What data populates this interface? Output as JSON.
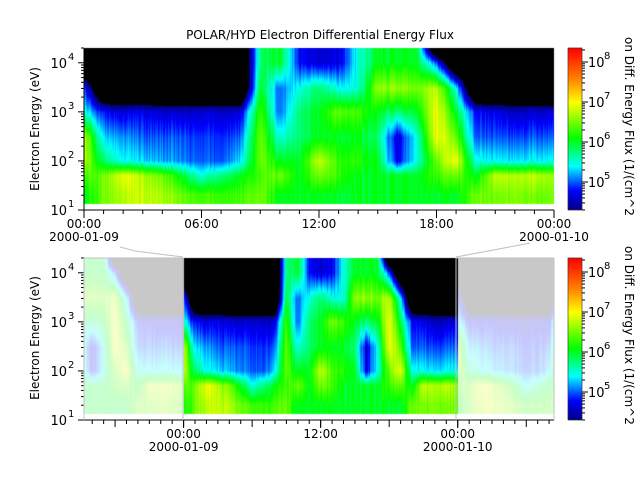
{
  "chart_data": [
    {
      "type": "heatmap",
      "panel": "overview",
      "title": "POLAR/HYD  Electron Differential Energy Flux",
      "ylabel": "Electron Energy (eV)",
      "zlabel": "on Diff. Energy Flux (1/(cm^2",
      "yscale": "log",
      "zscale": "log",
      "ylim": [
        10,
        20000
      ],
      "zlim": [
        20000,
        220000000
      ],
      "xlim": [
        "2000-01-09T00:00",
        "2000-01-10T00:00"
      ],
      "xticks": [
        {
          "time": "00:00",
          "date": "2000-01-09",
          "hour": 0
        },
        {
          "time": "06:00",
          "date": "",
          "hour": 6
        },
        {
          "time": "12:00",
          "date": "",
          "hour": 12
        },
        {
          "time": "18:00",
          "date": "",
          "hour": 18
        },
        {
          "time": "00:00",
          "date": "2000-01-10",
          "hour": 24
        }
      ],
      "yticks": [
        {
          "base": "10",
          "exp": "1",
          "value": 10
        },
        {
          "base": "10",
          "exp": "2",
          "value": 100
        },
        {
          "base": "10",
          "exp": "3",
          "value": 1000
        },
        {
          "base": "10",
          "exp": "4",
          "value": 10000
        }
      ],
      "zticks": [
        {
          "base": "10",
          "exp": "5",
          "value": 100000
        },
        {
          "base": "10",
          "exp": "6",
          "value": 1000000
        },
        {
          "base": "10",
          "exp": "7",
          "value": 10000000
        },
        {
          "base": "10",
          "exp": "8",
          "value": 100000000
        }
      ],
      "colormap": [
        "#00007f",
        "#0000ff",
        "#00ffff",
        "#00ff00",
        "#ffff00",
        "#ff8000",
        "#ff0000"
      ],
      "fill_color": "#000000",
      "energies": [
        13,
        20,
        50,
        100,
        300,
        1000,
        3000,
        10000,
        20000
      ],
      "times": [
        "2000-01-09T00:00",
        "2000-01-09T01:00",
        "2000-01-09T02:00",
        "2000-01-09T03:00",
        "2000-01-09T04:00",
        "2000-01-09T05:00",
        "2000-01-09T06:00",
        "2000-01-09T07:00",
        "2000-01-09T08:00",
        "2000-01-09T09:00",
        "2000-01-09T10:00",
        "2000-01-09T11:00",
        "2000-01-09T12:00",
        "2000-01-09T13:00",
        "2000-01-09T14:00",
        "2000-01-09T15:00",
        "2000-01-09T16:00",
        "2000-01-09T17:00",
        "2000-01-09T18:00",
        "2000-01-09T19:00",
        "2000-01-09T20:00",
        "2000-01-09T21:00",
        "2000-01-09T22:00",
        "2000-01-09T23:00",
        "2000-01-10T00:00"
      ],
      "flux": [
        [
          1000000.0,
          1000000.0,
          2000000.0,
          6000000.0,
          6000000.0,
          300000.0,
          100000.0,
          null,
          null
        ],
        [
          3000000.0,
          3000000.0,
          3000000.0,
          600000.0,
          200000.0,
          60000.0,
          null,
          null,
          null
        ],
        [
          6000000.0,
          6000000.0,
          10000000.0,
          300000.0,
          160000.0,
          50000.0,
          null,
          null,
          null
        ],
        [
          6000000.0,
          6000000.0,
          5000000.0,
          200000.0,
          100000.0,
          50000.0,
          null,
          null,
          null
        ],
        [
          5000000.0,
          5000000.0,
          3000000.0,
          160000.0,
          100000.0,
          40000.0,
          null,
          null,
          null
        ],
        [
          3000000.0,
          3000000.0,
          1000000.0,
          130000.0,
          100000.0,
          40000.0,
          null,
          null,
          null
        ],
        [
          2000000.0,
          2000000.0,
          300000.0,
          100000.0,
          80000.0,
          40000.0,
          null,
          null,
          null
        ],
        [
          2000000.0,
          2000000.0,
          600000.0,
          100000.0,
          80000.0,
          40000.0,
          null,
          null,
          null
        ],
        [
          2000000.0,
          2000000.0,
          1000000.0,
          200000.0,
          100000.0,
          40000.0,
          null,
          null,
          null
        ],
        [
          3000000.0,
          3000000.0,
          2000000.0,
          3000000.0,
          3000000.0,
          2000000.0,
          1000000.0,
          600000.0,
          600000.0
        ],
        [
          1000000.0,
          1000000.0,
          3000000.0,
          1000000.0,
          300000.0,
          100000.0,
          100000.0,
          1000000.0,
          1000000.0
        ],
        [
          1000000.0,
          1000000.0,
          1000000.0,
          1000000.0,
          600000.0,
          600000.0,
          300000.0,
          60000.0,
          60000.0
        ],
        [
          1000000.0,
          1000000.0,
          3000000.0,
          6000000.0,
          1000000.0,
          1000000.0,
          600000.0,
          40000.0,
          40000.0
        ],
        [
          1000000.0,
          1000000.0,
          2000000.0,
          2000000.0,
          1000000.0,
          3000000.0,
          300000.0,
          50000.0,
          50000.0
        ],
        [
          1000000.0,
          1000000.0,
          1000000.0,
          1600000.0,
          1000000.0,
          2000000.0,
          300000.0,
          300000.0,
          300000.0
        ],
        [
          1000000.0,
          1000000.0,
          1000000.0,
          1000000.0,
          600000.0,
          1000000.0,
          4000000.0,
          1000000.0,
          1000000.0
        ],
        [
          1000000.0,
          1000000.0,
          1000000.0,
          50000.0,
          40000.0,
          600000.0,
          4000000.0,
          1000000.0,
          1000000.0
        ],
        [
          1000000.0,
          1000000.0,
          1000000.0,
          300000.0,
          300000.0,
          1000000.0,
          3000000.0,
          1000000.0,
          1000000.0
        ],
        [
          1000000.0,
          1000000.0,
          2000000.0,
          3000000.0,
          10000000.0,
          10000000.0,
          6000000.0,
          100000.0,
          null
        ],
        [
          1000000.0,
          1000000.0,
          3000000.0,
          10000000.0,
          3000000.0,
          1000000.0,
          300000.0,
          null,
          null
        ],
        [
          3000000.0,
          3000000.0,
          1000000.0,
          300000.0,
          100000.0,
          60000.0,
          null,
          null,
          null
        ],
        [
          3000000.0,
          3000000.0,
          6000000.0,
          250000.0,
          100000.0,
          50000.0,
          null,
          null,
          null
        ],
        [
          4000000.0,
          4000000.0,
          6000000.0,
          250000.0,
          100000.0,
          40000.0,
          null,
          null,
          null
        ],
        [
          3000000.0,
          3000000.0,
          6000000.0,
          250000.0,
          100000.0,
          40000.0,
          null,
          null,
          null
        ],
        [
          3000000.0,
          3000000.0,
          4000000.0,
          250000.0,
          100000.0,
          40000.0,
          null,
          null,
          null
        ]
      ]
    },
    {
      "type": "heatmap",
      "panel": "context",
      "ylabel": "Electron Energy (eV)",
      "zlabel": "on Diff. Energy Flux (1/(cm^2",
      "yscale": "log",
      "ylim": [
        10,
        20000
      ],
      "xlim": [
        "2000-01-08T15:17",
        "2000-01-10T08:26"
      ],
      "highlight": [
        "2000-01-09T00:00",
        "2000-01-10T00:00"
      ],
      "xticks": [
        {
          "time": "00:00",
          "date": "2000-01-09",
          "hour": 0
        },
        {
          "time": "12:00",
          "date": "",
          "hour": 12
        },
        {
          "time": "00:00",
          "date": "2000-01-10",
          "hour": 24
        }
      ],
      "context_fill_color": "#c8c8c8"
    }
  ]
}
